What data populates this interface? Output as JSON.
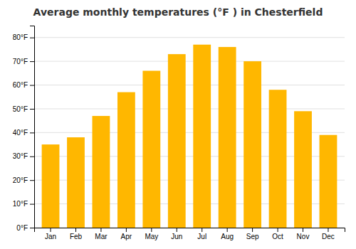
{
  "chart_data": {
    "type": "bar",
    "title": "Average monthly temperatures (°F ) in Chesterfield",
    "categories": [
      "Jan",
      "Feb",
      "Mar",
      "Apr",
      "May",
      "Jun",
      "Jul",
      "Aug",
      "Sep",
      "Oct",
      "Nov",
      "Dec"
    ],
    "values": [
      35,
      38,
      47,
      57,
      66,
      73,
      77,
      76,
      70,
      58,
      49,
      39
    ],
    "color": "#FFB700",
    "ylim": [
      0,
      85
    ],
    "yticks": [
      {
        "value": 0,
        "label": "0°F"
      },
      {
        "value": 10,
        "label": "10°F"
      },
      {
        "value": 20,
        "label": "20°F"
      },
      {
        "value": 30,
        "label": "30°F"
      },
      {
        "value": 40,
        "label": "40°F"
      },
      {
        "value": 50,
        "label": "50°F"
      },
      {
        "value": 60,
        "label": "60°F"
      },
      {
        "value": 70,
        "label": "70°F"
      },
      {
        "value": 80,
        "label": "80°F"
      }
    ],
    "grid": true
  }
}
